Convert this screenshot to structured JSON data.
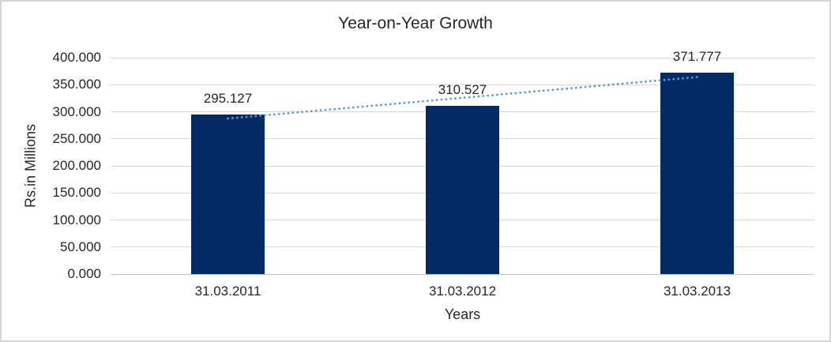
{
  "window": {
    "background": "#ffffff",
    "border_color": "#d6d6d6"
  },
  "chart_data": {
    "type": "bar",
    "title": "Year-on-Year Growth",
    "xlabel": "Years",
    "ylabel": "Rs.in Millions",
    "categories": [
      "31.03.2011",
      "31.03.2012",
      "31.03.2013"
    ],
    "values": [
      295.127,
      310.527,
      371.777
    ],
    "data_labels": [
      "295.127",
      "310.527",
      "371.777"
    ],
    "ylim": [
      0,
      400
    ],
    "ytick_step": 50,
    "yticks": [
      {
        "value": 0,
        "label": "0.000"
      },
      {
        "value": 50,
        "label": "50.000"
      },
      {
        "value": 100,
        "label": "100.000"
      },
      {
        "value": 150,
        "label": "150.000"
      },
      {
        "value": 200,
        "label": "200.000"
      },
      {
        "value": 250,
        "label": "250.000"
      },
      {
        "value": 300,
        "label": "300.000"
      },
      {
        "value": 350,
        "label": "350.000"
      },
      {
        "value": 400,
        "label": "400.000"
      }
    ],
    "grid": "horizontal",
    "legend": "none",
    "bar_color": "#042a66",
    "gridline_color": "#d9d9d9",
    "axis_line_color": "#c4c4c4",
    "text_color": "#262626",
    "trendline": {
      "type": "linear",
      "style": "dotted",
      "color": "#5b9bd5",
      "start_value": 287.5,
      "end_value": 364.1
    }
  }
}
